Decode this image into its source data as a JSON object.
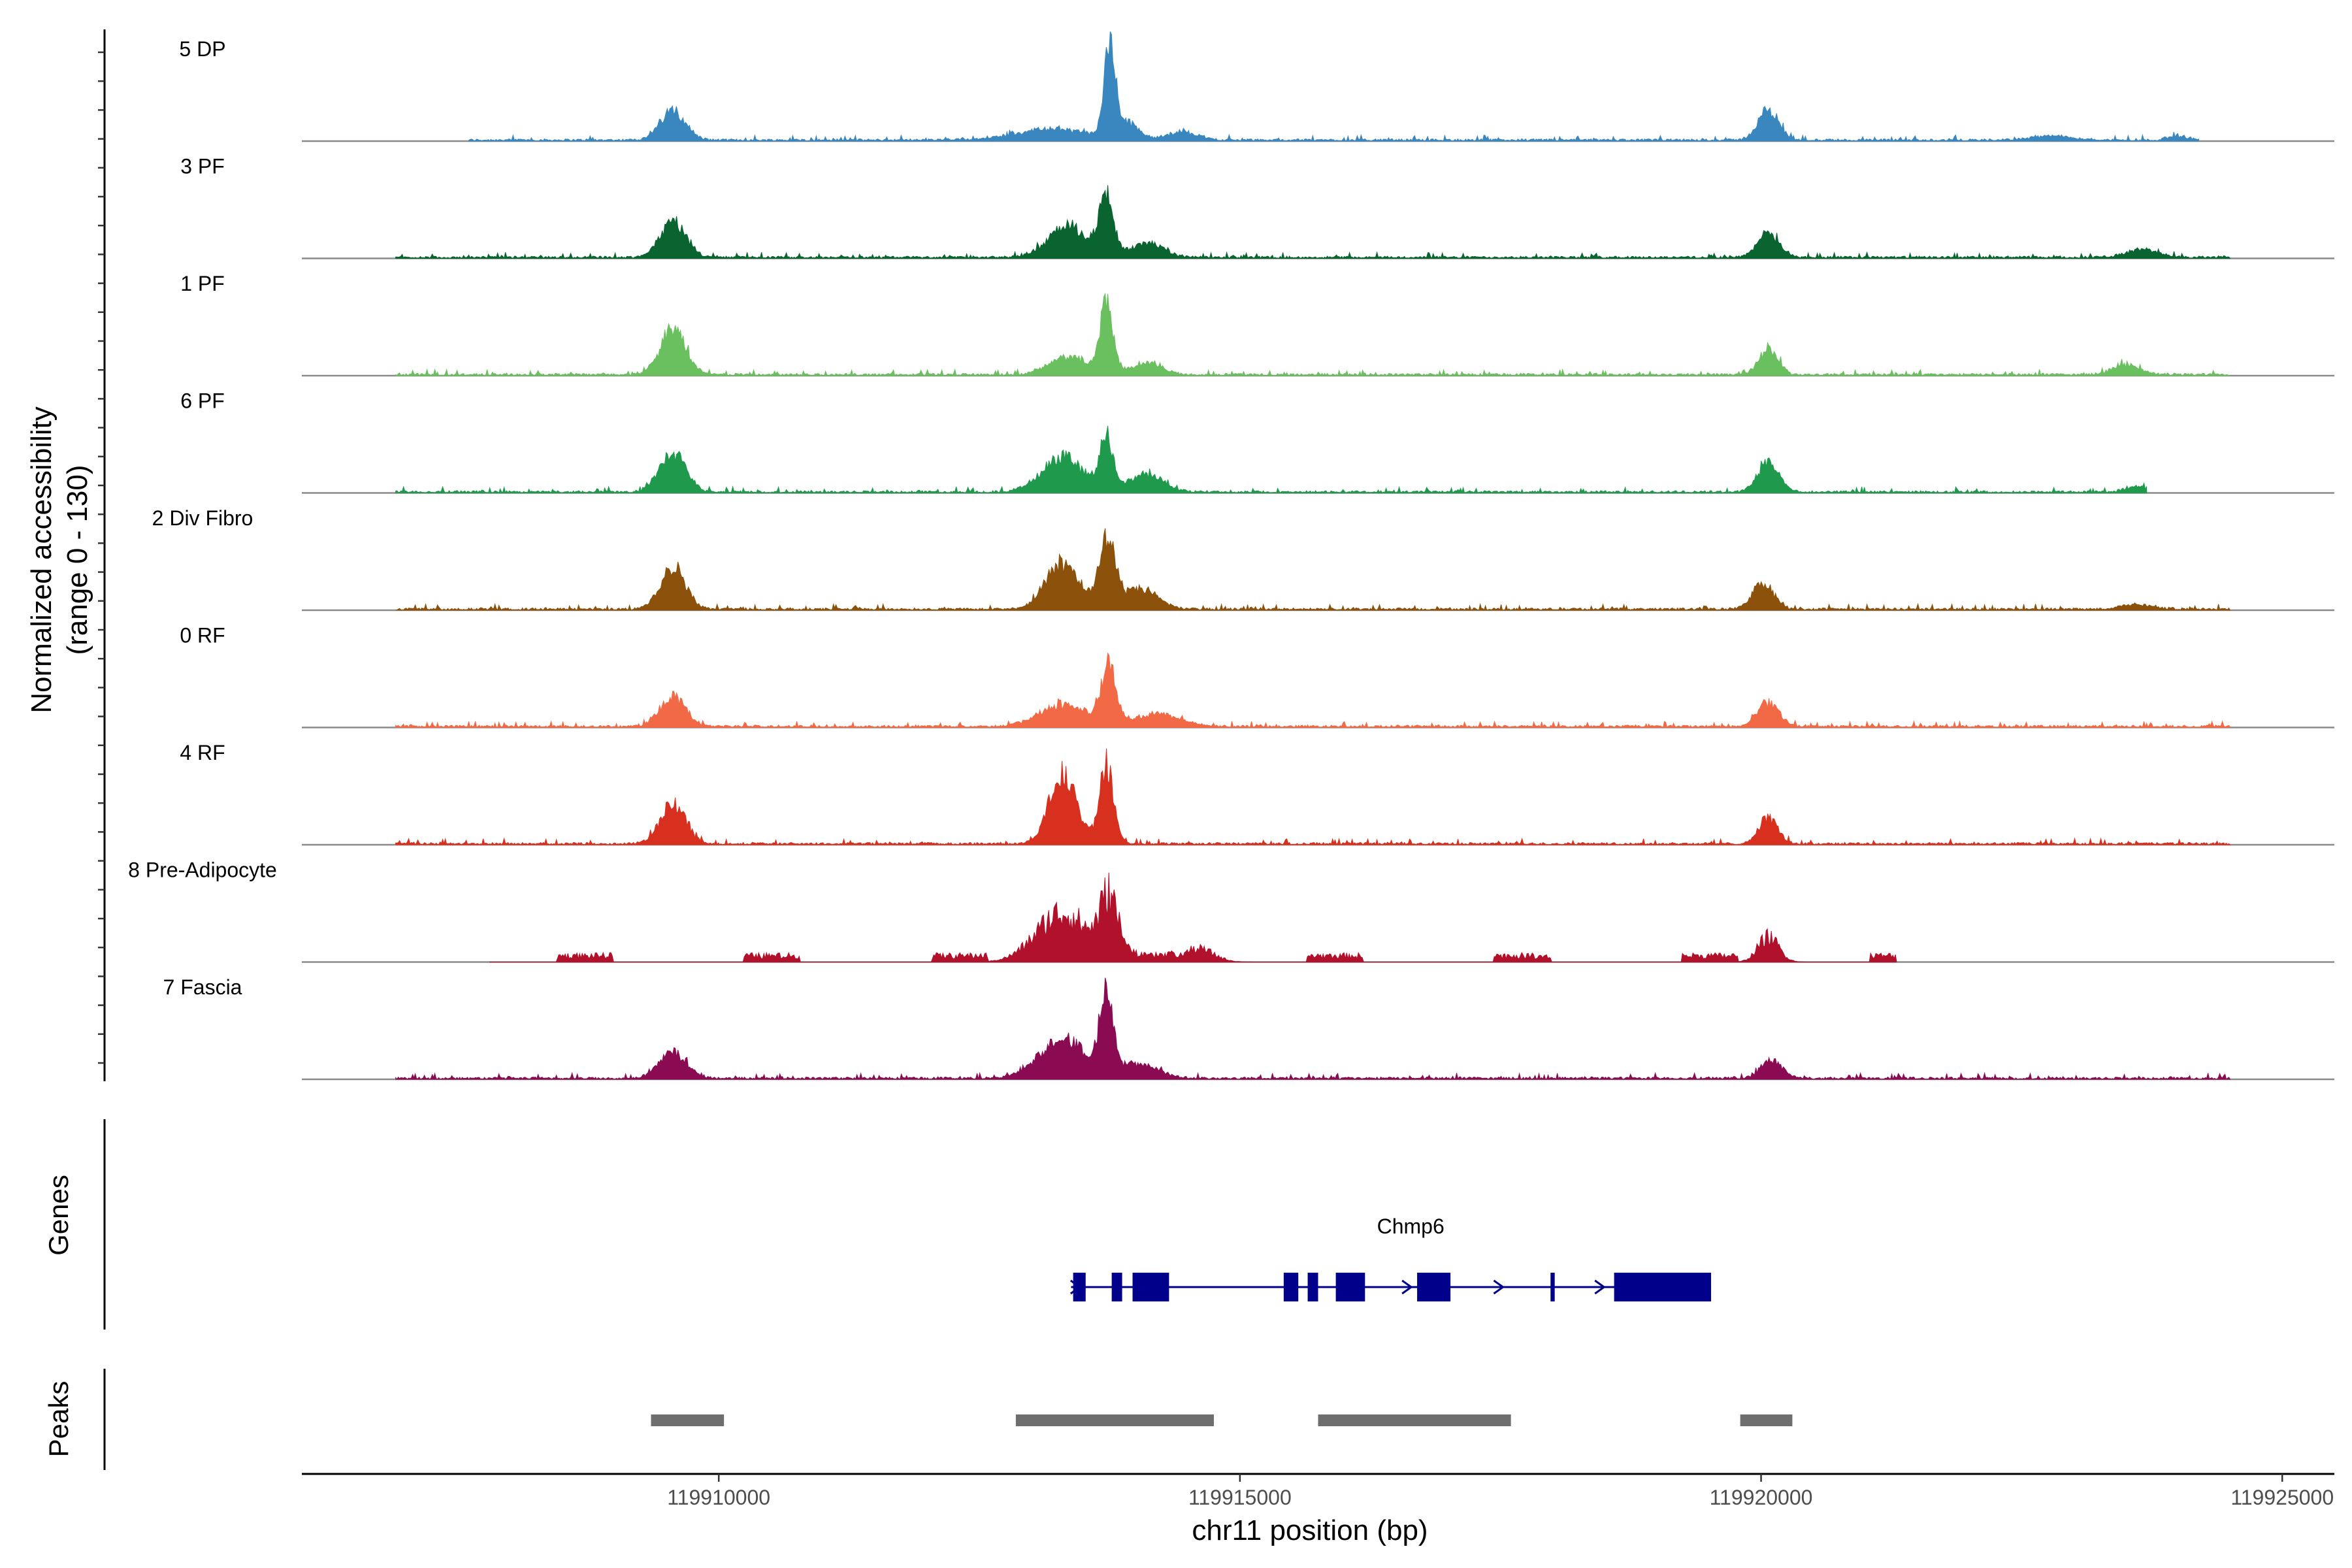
{
  "chart_data": {
    "type": "area",
    "title": "",
    "ylabel": "Normalized accessibility",
    "ylabel_range": "(range 0 - 130)",
    "ylim": [
      0,
      130
    ],
    "xlabel": "chr11 position (bp)",
    "xlim": [
      119906000,
      119925500
    ],
    "xticks": [
      119910000,
      119915000,
      119920000,
      119925000
    ],
    "xtick_labels": [
      "119910000",
      "119915000",
      "119920000",
      "119925000"
    ],
    "tracks": [
      {
        "name": "5 DP",
        "color": "#3a87c0",
        "start": 119907600,
        "end": 119924200,
        "gapped": false,
        "peaks": [
          [
            119909560,
            30,
            120
          ],
          [
            119913200,
            11,
            350
          ],
          [
            119913750,
            90,
            50
          ],
          [
            119913900,
            18,
            120
          ],
          [
            119914450,
            8,
            150
          ],
          [
            119920070,
            30,
            100
          ],
          [
            119922800,
            4,
            200
          ],
          [
            119924000,
            4,
            100
          ]
        ]
      },
      {
        "name": "3 PF",
        "color": "#09642f",
        "start": 119906900,
        "end": 119924500,
        "gapped": false,
        "peaks": [
          [
            119909560,
            37,
            120
          ],
          [
            119913350,
            32,
            180
          ],
          [
            119913720,
            57,
            70
          ],
          [
            119914100,
            14,
            160
          ],
          [
            119920070,
            26,
            100
          ],
          [
            119923650,
            8,
            150
          ]
        ]
      },
      {
        "name": "1 PF",
        "color": "#6abf5e",
        "start": 119906900,
        "end": 119924500,
        "gapped": false,
        "peaks": [
          [
            119909560,
            46,
            120
          ],
          [
            119913350,
            18,
            180
          ],
          [
            119913720,
            70,
            60
          ],
          [
            119914100,
            12,
            150
          ],
          [
            119920070,
            27,
            90
          ],
          [
            119923500,
            10,
            130
          ]
        ]
      },
      {
        "name": "6 PF",
        "color": "#1f9a4c",
        "start": 119906900,
        "end": 119923700,
        "gapped": false,
        "peaks": [
          [
            119909560,
            40,
            120
          ],
          [
            119913300,
            34,
            200
          ],
          [
            119913720,
            55,
            60
          ],
          [
            119914100,
            18,
            160
          ],
          [
            119920070,
            30,
            100
          ],
          [
            119923600,
            6,
            100
          ]
        ]
      },
      {
        "name": "2 Div Fibro",
        "color": "#8c510a",
        "start": 119906900,
        "end": 119924500,
        "gapped": false,
        "peaks": [
          [
            119909560,
            43,
            120
          ],
          [
            119913300,
            46,
            160
          ],
          [
            119913730,
            67,
            80
          ],
          [
            119914050,
            20,
            160
          ],
          [
            119920020,
            27,
            100
          ],
          [
            119923600,
            5,
            150
          ]
        ]
      },
      {
        "name": "0 RF",
        "color": "#f26a45",
        "start": 119906900,
        "end": 119924500,
        "gapped": false,
        "peaks": [
          [
            119909560,
            30,
            120
          ],
          [
            119913300,
            23,
            220
          ],
          [
            119913740,
            57,
            70
          ],
          [
            119914200,
            13,
            220
          ],
          [
            119920070,
            24,
            100
          ]
        ]
      },
      {
        "name": "4 RF",
        "color": "#d7301f",
        "start": 119906900,
        "end": 119924500,
        "gapped": false,
        "peaks": [
          [
            119909560,
            40,
            120
          ],
          [
            119913300,
            68,
            130
          ],
          [
            119913720,
            76,
            70
          ],
          [
            119920070,
            26,
            90
          ]
        ]
      },
      {
        "name": "8 Pre-Adipocyte",
        "color": "#b1112b",
        "start": 119907800,
        "end": 119921300,
        "gapped": true,
        "peaks": [
          [
            119913300,
            55,
            250
          ],
          [
            119913750,
            66,
            90
          ],
          [
            119914600,
            15,
            150
          ],
          [
            119920070,
            28,
            100
          ]
        ]
      },
      {
        "name": "7 Fascia",
        "color": "#8a0b52",
        "start": 119906900,
        "end": 119924500,
        "gapped": false,
        "peaks": [
          [
            119909560,
            26,
            130
          ],
          [
            119913300,
            40,
            220
          ],
          [
            119913720,
            87,
            60
          ],
          [
            119914000,
            15,
            200
          ],
          [
            119920100,
            18,
            100
          ]
        ]
      }
    ],
    "genes": [
      {
        "name": "Chmp6",
        "color": "#00008b",
        "strand": "+",
        "start": 119913380,
        "end": 119919520,
        "exons": [
          [
            119913400,
            119913520
          ],
          [
            119913770,
            119913870
          ],
          [
            119913970,
            119914320
          ],
          [
            119915420,
            119915560
          ],
          [
            119915650,
            119915750
          ],
          [
            119915920,
            119916200
          ],
          [
            119916700,
            119917020
          ],
          [
            119917980,
            119918020
          ],
          [
            119918590,
            119919520
          ]
        ]
      }
    ],
    "peaks": [
      {
        "start": 119909350,
        "end": 119910050,
        "color": "#6e6e6e"
      },
      {
        "start": 119912850,
        "end": 119914750,
        "color": "#6e6e6e"
      },
      {
        "start": 119915750,
        "end": 119917600,
        "color": "#6e6e6e"
      },
      {
        "start": 119919800,
        "end": 119920300,
        "color": "#6e6e6e"
      }
    ],
    "panel_titles": {
      "genes": "Genes",
      "peaks": "Peaks"
    }
  }
}
